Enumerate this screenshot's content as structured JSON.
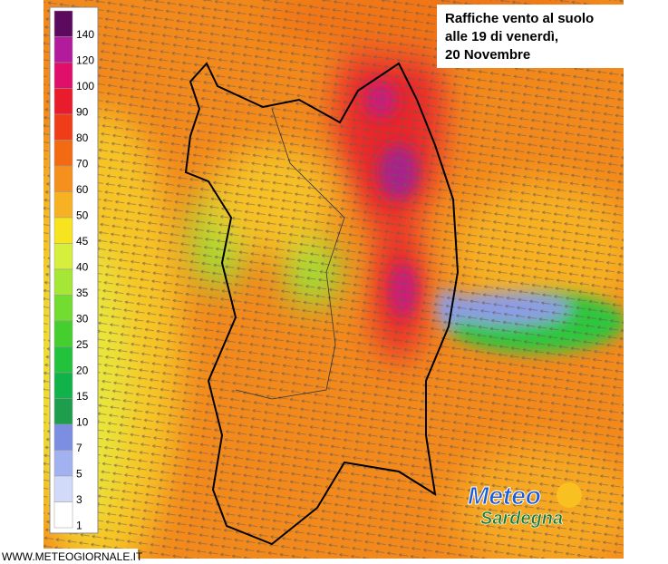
{
  "title_box": {
    "lines": [
      "Raffiche vento al suolo",
      "alle 19 di venerdì,",
      "20 Novembre"
    ]
  },
  "legend": [
    {
      "label": "140",
      "color": "#5c0a5e"
    },
    {
      "label": "120",
      "color": "#b21c9c"
    },
    {
      "label": "100",
      "color": "#e0106a"
    },
    {
      "label": "90",
      "color": "#e81c2c"
    },
    {
      "label": "80",
      "color": "#ef3d1a"
    },
    {
      "label": "70",
      "color": "#f26a12"
    },
    {
      "label": "60",
      "color": "#f5901c"
    },
    {
      "label": "50",
      "color": "#f6b222"
    },
    {
      "label": "45",
      "color": "#f8e41e"
    },
    {
      "label": "40",
      "color": "#d6ef3c"
    },
    {
      "label": "35",
      "color": "#a6e634"
    },
    {
      "label": "30",
      "color": "#72dc30"
    },
    {
      "label": "25",
      "color": "#44cf2e"
    },
    {
      "label": "20",
      "color": "#22c23c"
    },
    {
      "label": "15",
      "color": "#12b24a"
    },
    {
      "label": "10",
      "color": "#1e9e4c"
    },
    {
      "label": "7",
      "color": "#7c8ee2"
    },
    {
      "label": "5",
      "color": "#a2b2f0"
    },
    {
      "label": "3",
      "color": "#d2dafa"
    },
    {
      "label": "1",
      "color": "#ffffff"
    }
  ],
  "logo": {
    "line1": "Meteo",
    "line2": "Sardegna"
  },
  "footer": "WWW.METEOGIORNALE.IT"
}
